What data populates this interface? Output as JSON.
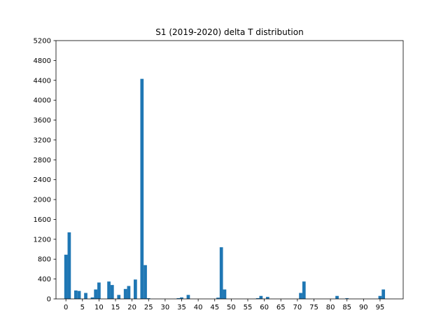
{
  "chart_data": {
    "type": "bar",
    "title": "S1 (2019-2020) delta T distribution",
    "xlabel": "",
    "ylabel": "",
    "xlim": [
      -3,
      102
    ],
    "ylim": [
      0,
      5200
    ],
    "xticks": [
      0,
      5,
      10,
      15,
      20,
      25,
      30,
      35,
      40,
      45,
      50,
      55,
      60,
      65,
      70,
      75,
      80,
      85,
      90,
      95
    ],
    "yticks": [
      0,
      400,
      800,
      1200,
      1600,
      2000,
      2400,
      2800,
      3200,
      3600,
      4000,
      4400,
      4800,
      5200
    ],
    "bar_width": 1,
    "color": "#1f77b4",
    "grid": false,
    "legend": "none",
    "bars": [
      {
        "x": 0,
        "value": 890
      },
      {
        "x": 1,
        "value": 1340
      },
      {
        "x": 3,
        "value": 170
      },
      {
        "x": 4,
        "value": 160
      },
      {
        "x": 6,
        "value": 120
      },
      {
        "x": 8,
        "value": 30
      },
      {
        "x": 9,
        "value": 190
      },
      {
        "x": 10,
        "value": 330
      },
      {
        "x": 13,
        "value": 350
      },
      {
        "x": 14,
        "value": 280
      },
      {
        "x": 16,
        "value": 80
      },
      {
        "x": 18,
        "value": 200
      },
      {
        "x": 19,
        "value": 260
      },
      {
        "x": 21,
        "value": 390
      },
      {
        "x": 23,
        "value": 4430
      },
      {
        "x": 24,
        "value": 680
      },
      {
        "x": 25,
        "value": 15
      },
      {
        "x": 34,
        "value": 15
      },
      {
        "x": 35,
        "value": 30
      },
      {
        "x": 37,
        "value": 80
      },
      {
        "x": 46,
        "value": 25
      },
      {
        "x": 47,
        "value": 1040
      },
      {
        "x": 48,
        "value": 190
      },
      {
        "x": 58,
        "value": 15
      },
      {
        "x": 59,
        "value": 60
      },
      {
        "x": 61,
        "value": 40
      },
      {
        "x": 71,
        "value": 120
      },
      {
        "x": 72,
        "value": 350
      },
      {
        "x": 82,
        "value": 60
      },
      {
        "x": 85,
        "value": 15
      },
      {
        "x": 95,
        "value": 60
      },
      {
        "x": 96,
        "value": 190
      }
    ]
  }
}
